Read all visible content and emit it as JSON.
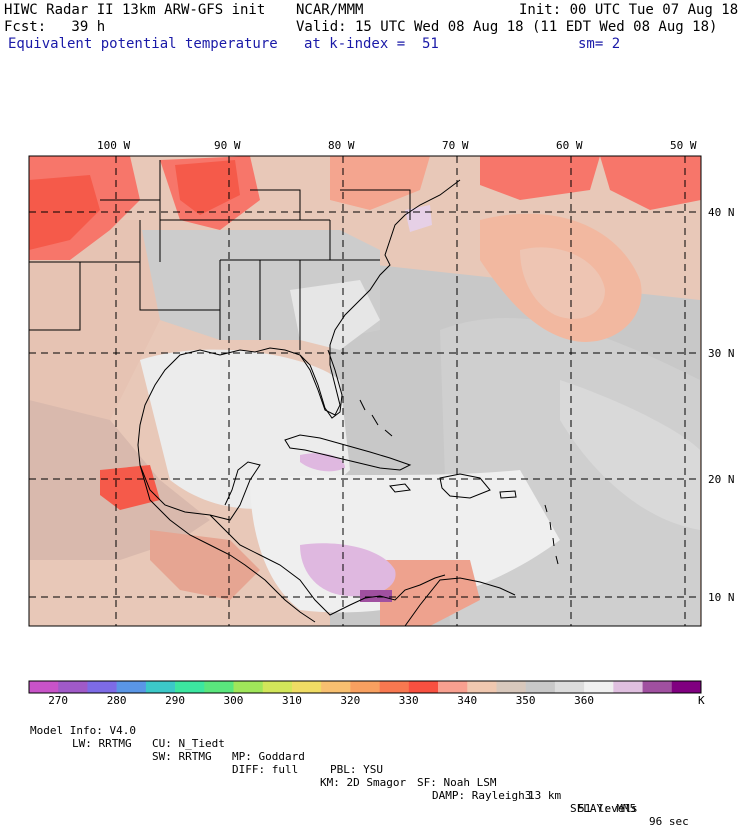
{
  "header": {
    "model": "HIWC Radar II 13km ARW-GFS init",
    "org": "NCAR/MMM",
    "init": "Init: 00 UTC Tue 07 Aug 18",
    "fcst": "Fcst:   39 h",
    "valid": "Valid: 15 UTC Wed 08 Aug 18 (11 EDT Wed 08 Aug 18)",
    "field": "Equivalent potential temperature",
    "level": "at k-index =  51",
    "smooth": "sm= 2"
  },
  "map": {
    "lon_labels": [
      "100 W",
      "90 W",
      "80 W",
      "70 W",
      "60 W",
      "50 W"
    ],
    "lat_labels": [
      "40 N",
      "30 N",
      "20 N",
      "10 N"
    ]
  },
  "colorbar": {
    "colors": [
      "#c853c8",
      "#a05ac8",
      "#7d6be6",
      "#5a96e6",
      "#3cc8c8",
      "#3ce6a0",
      "#5ae67d",
      "#a0e65a",
      "#d2e65a",
      "#f0dc64",
      "#f8c070",
      "#f8a060",
      "#f87850",
      "#f85040",
      "#f8a090",
      "#f0c8b0",
      "#d8c8bc",
      "#c8c8c8",
      "#dcdcdc",
      "#f0f0f0",
      "#e0c0e0",
      "#a050a0",
      "#800080"
    ],
    "tick_labels": [
      "270",
      "280",
      "290",
      "300",
      "310",
      "320",
      "330",
      "340",
      "350",
      "360"
    ],
    "unit": "K"
  },
  "footer": {
    "line1": [
      "Model Info: V4.0",
      "CU: N_Tiedt",
      "MP: Goddard",
      "PBL: YSU",
      "SF: Noah LSM",
      "13 km",
      "51 levels",
      "96 sec"
    ],
    "line2": [
      "LW: RRTMG",
      "SW: RRTMG",
      "DIFF: full",
      "KM: 2D Smagor",
      "DAMP: Rayleigh3",
      "SFLAY: MM5"
    ]
  }
}
